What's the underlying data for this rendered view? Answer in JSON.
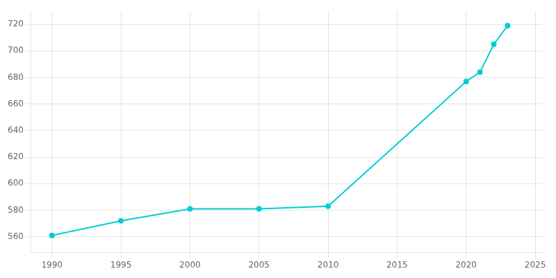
{
  "chart_data": {
    "type": "line",
    "x": [
      1990,
      1995,
      2000,
      2005,
      2010,
      2020,
      2021,
      2022,
      2023
    ],
    "values": [
      561,
      572,
      581,
      581,
      583,
      677,
      684,
      705,
      719
    ],
    "color": "#00CED1",
    "marker": "circle",
    "xlim": [
      1988.5,
      2025.5
    ],
    "xticks": [
      1990,
      1995,
      2000,
      2005,
      2010,
      2015,
      2020,
      2025
    ],
    "ylim": [
      548,
      730
    ],
    "yticks": [
      560,
      580,
      600,
      620,
      640,
      660,
      680,
      700,
      720
    ],
    "grid": true
  }
}
